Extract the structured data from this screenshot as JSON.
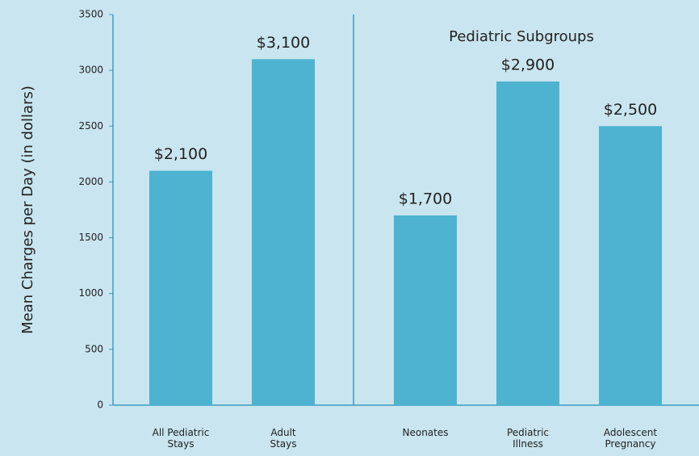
{
  "chart_data": {
    "type": "bar",
    "y_label": "Mean Charges per Day (in dollars)",
    "annotation": "Pediatric Subgroups",
    "categories": [
      "All Pediatric\nStays",
      "Adult\nStays",
      "Neonates",
      "Pediatric\nIllness",
      "Adolescent\nPregnancy"
    ],
    "values": [
      2100,
      3100,
      1700,
      2900,
      2500
    ],
    "value_labels": [
      "$2,100",
      "$3,100",
      "$1,700",
      "$2,900",
      "$2,500"
    ],
    "color": "#4db3d1",
    "ylim": [
      0,
      3500
    ],
    "yticks": [
      0,
      500,
      1000,
      1500,
      2000,
      2500,
      3000,
      3500
    ],
    "grid": false
  }
}
